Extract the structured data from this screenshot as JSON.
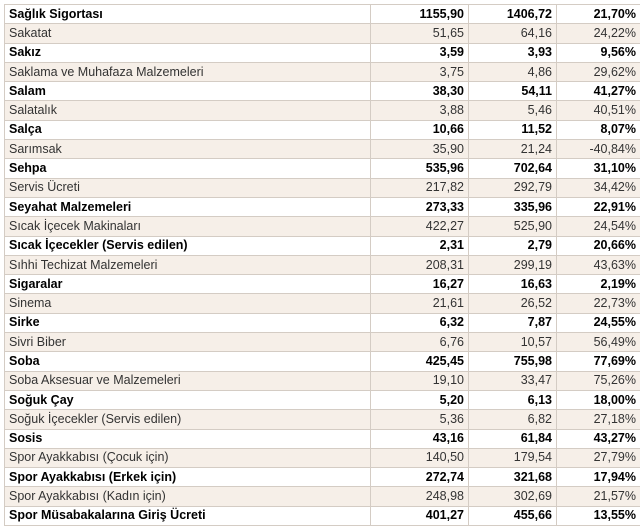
{
  "table": {
    "rows": [
      {
        "name": "Sağlık Sigortası",
        "v1": "1155,90",
        "v2": "1406,72",
        "pct": "21,70%",
        "bold": true
      },
      {
        "name": "Sakatat",
        "v1": "51,65",
        "v2": "64,16",
        "pct": "24,22%",
        "bold": false
      },
      {
        "name": "Sakız",
        "v1": "3,59",
        "v2": "3,93",
        "pct": "9,56%",
        "bold": true
      },
      {
        "name": "Saklama ve Muhafaza Malzemeleri",
        "v1": "3,75",
        "v2": "4,86",
        "pct": "29,62%",
        "bold": false
      },
      {
        "name": "Salam",
        "v1": "38,30",
        "v2": "54,11",
        "pct": "41,27%",
        "bold": true
      },
      {
        "name": "Salatalık",
        "v1": "3,88",
        "v2": "5,46",
        "pct": "40,51%",
        "bold": false
      },
      {
        "name": "Salça",
        "v1": "10,66",
        "v2": "11,52",
        "pct": "8,07%",
        "bold": true
      },
      {
        "name": "Sarımsak",
        "v1": "35,90",
        "v2": "21,24",
        "pct": "-40,84%",
        "bold": false
      },
      {
        "name": "Sehpa",
        "v1": "535,96",
        "v2": "702,64",
        "pct": "31,10%",
        "bold": true
      },
      {
        "name": "Servis Ücreti",
        "v1": "217,82",
        "v2": "292,79",
        "pct": "34,42%",
        "bold": false
      },
      {
        "name": "Seyahat Malzemeleri",
        "v1": "273,33",
        "v2": "335,96",
        "pct": "22,91%",
        "bold": true
      },
      {
        "name": "Sıcak İçecek Makinaları",
        "v1": "422,27",
        "v2": "525,90",
        "pct": "24,54%",
        "bold": false
      },
      {
        "name": "Sıcak İçecekler (Servis edilen)",
        "v1": "2,31",
        "v2": "2,79",
        "pct": "20,66%",
        "bold": true
      },
      {
        "name": "Sıhhi Techizat Malzemeleri",
        "v1": "208,31",
        "v2": "299,19",
        "pct": "43,63%",
        "bold": false
      },
      {
        "name": "Sigaralar",
        "v1": "16,27",
        "v2": "16,63",
        "pct": "2,19%",
        "bold": true
      },
      {
        "name": "Sinema",
        "v1": "21,61",
        "v2": "26,52",
        "pct": "22,73%",
        "bold": false
      },
      {
        "name": "Sirke",
        "v1": "6,32",
        "v2": "7,87",
        "pct": "24,55%",
        "bold": true
      },
      {
        "name": "Sivri Biber",
        "v1": "6,76",
        "v2": "10,57",
        "pct": "56,49%",
        "bold": false
      },
      {
        "name": "Soba",
        "v1": "425,45",
        "v2": "755,98",
        "pct": "77,69%",
        "bold": true
      },
      {
        "name": "Soba Aksesuar ve Malzemeleri",
        "v1": "19,10",
        "v2": "33,47",
        "pct": "75,26%",
        "bold": false
      },
      {
        "name": "Soğuk Çay",
        "v1": "5,20",
        "v2": "6,13",
        "pct": "18,00%",
        "bold": true
      },
      {
        "name": "Soğuk İçecekler (Servis edilen)",
        "v1": "5,36",
        "v2": "6,82",
        "pct": "27,18%",
        "bold": false
      },
      {
        "name": "Sosis",
        "v1": "43,16",
        "v2": "61,84",
        "pct": "43,27%",
        "bold": true
      },
      {
        "name": "Spor Ayakkabısı (Çocuk için)",
        "v1": "140,50",
        "v2": "179,54",
        "pct": "27,79%",
        "bold": false
      },
      {
        "name": "Spor Ayakkabısı (Erkek için)",
        "v1": "272,74",
        "v2": "321,68",
        "pct": "17,94%",
        "bold": true
      },
      {
        "name": "Spor Ayakkabısı (Kadın için)",
        "v1": "248,98",
        "v2": "302,69",
        "pct": "21,57%",
        "bold": false
      },
      {
        "name": "Spor Müsabakalarına Giriş Ücreti",
        "v1": "401,27",
        "v2": "455,66",
        "pct": "13,55%",
        "bold": true
      }
    ]
  }
}
